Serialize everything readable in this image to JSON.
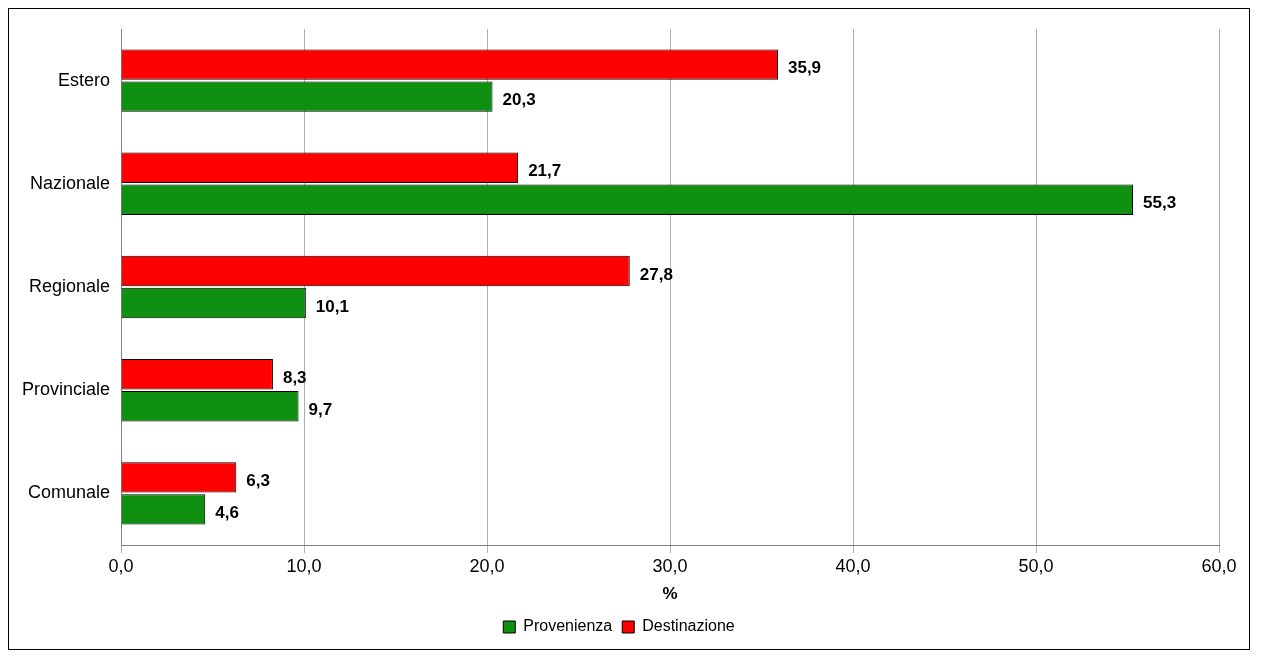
{
  "chart_data": {
    "type": "bar",
    "orientation": "horizontal",
    "categories": [
      "Estero",
      "Nazionale",
      "Regionale",
      "Provinciale",
      "Comunale"
    ],
    "series": [
      {
        "name": "Provenienza",
        "color": "#109010",
        "values": [
          20.3,
          55.3,
          10.1,
          9.7,
          4.6
        ],
        "value_labels": [
          "20,3",
          "55,3",
          "10,1",
          "9,7",
          "4,6"
        ]
      },
      {
        "name": "Destinazione",
        "color": "#ff0000",
        "values": [
          35.9,
          21.7,
          27.8,
          8.3,
          6.3
        ],
        "value_labels": [
          "35,9",
          "21,7",
          "27,8",
          "8,3",
          "6,3"
        ]
      }
    ],
    "xlabel": "%",
    "xlim": [
      0,
      60
    ],
    "xticks": [
      {
        "value": 0,
        "label": "0,0"
      },
      {
        "value": 10,
        "label": "10,0"
      },
      {
        "value": 20,
        "label": "20,0"
      },
      {
        "value": 30,
        "label": "30,0"
      },
      {
        "value": 40,
        "label": "40,0"
      },
      {
        "value": 50,
        "label": "50,0"
      },
      {
        "value": 60,
        "label": "60,0"
      }
    ],
    "grid": "x",
    "legend": "bottom"
  }
}
